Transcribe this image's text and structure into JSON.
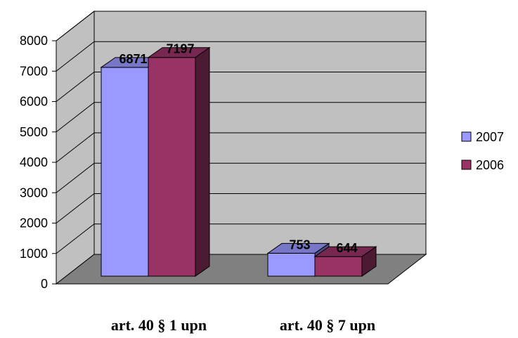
{
  "chart_data": {
    "type": "bar",
    "style": "3d-clustered-column",
    "categories": [
      "art. 40 § 1 upn",
      "art. 40 § 7 upn"
    ],
    "series": [
      {
        "name": "2007",
        "values": [
          6871,
          753
        ],
        "color": "#9999ff"
      },
      {
        "name": "2006",
        "values": [
          7197,
          644
        ],
        "color": "#993366"
      }
    ],
    "ylim": [
      0,
      8000
    ],
    "yticks": [
      "0",
      "1000",
      "2000",
      "3000",
      "4000",
      "5000",
      "6000",
      "7000",
      "8000"
    ],
    "data_labels": [
      [
        "6871",
        "753"
      ],
      [
        "7197",
        "644"
      ]
    ],
    "grid": true,
    "legend": "right",
    "wall_color": "#c0c0c0",
    "floor_color": "#808080"
  }
}
